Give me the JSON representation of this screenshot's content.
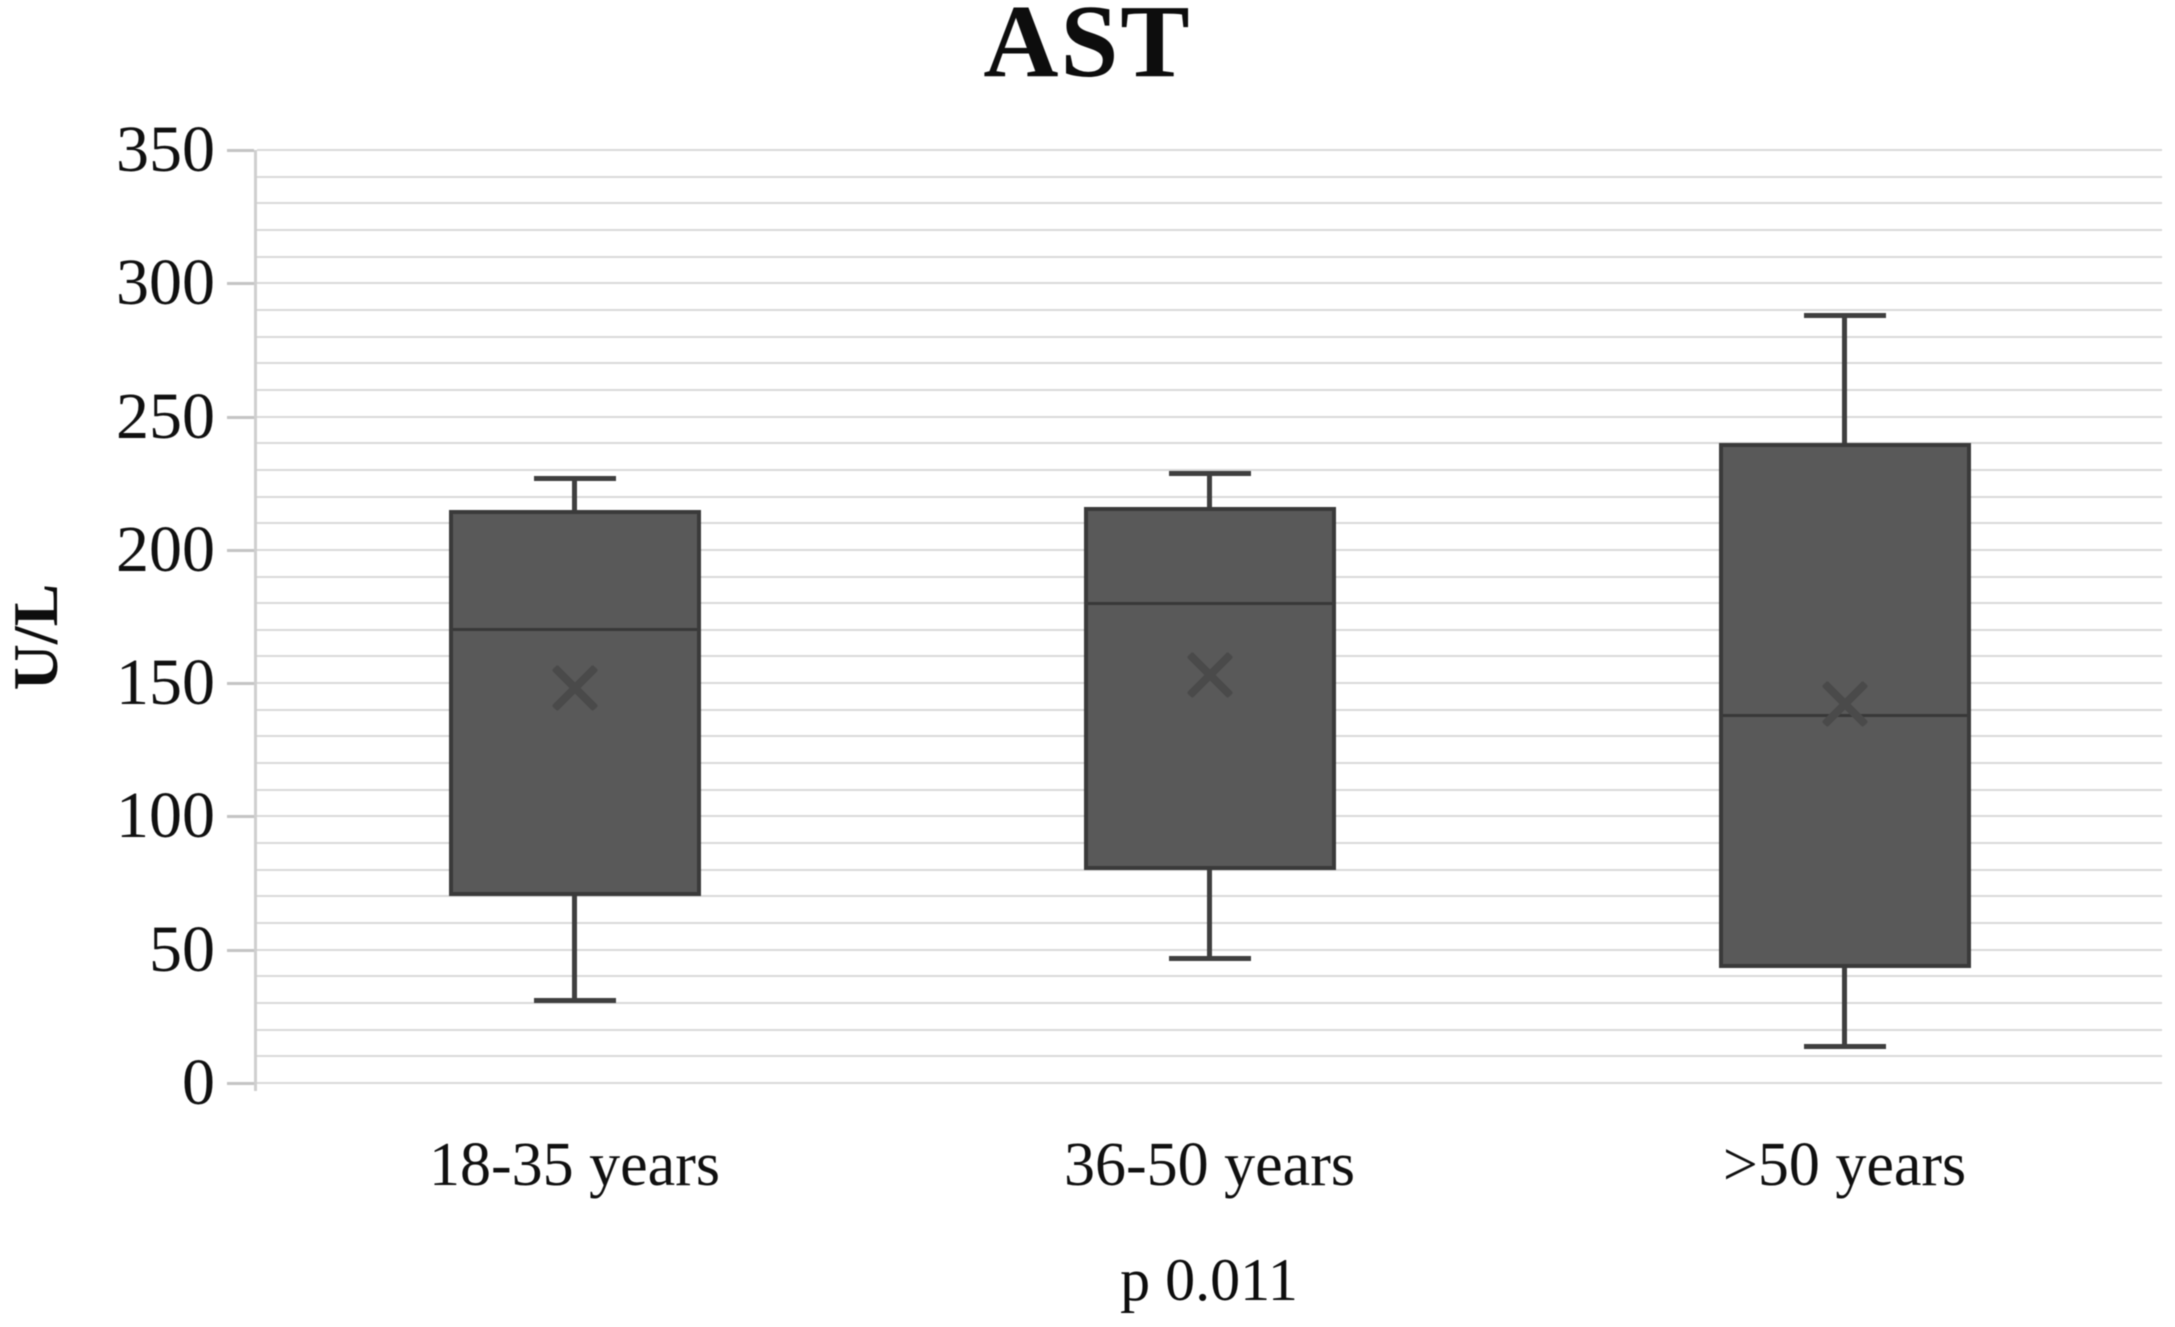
{
  "chart_data": {
    "type": "boxplot",
    "title": "AST",
    "ylabel": "U/L",
    "xlabel": "",
    "annotation": "p 0.011",
    "ylim": [
      0,
      350
    ],
    "ytick_step": 50,
    "gridline_step": 10,
    "grid": true,
    "legend": false,
    "categories": [
      "18-35 years",
      "36-50 years",
      ">50 years"
    ],
    "series": [
      {
        "name": "18-35 years",
        "whisker_low": 31,
        "q1": 70,
        "median": 170,
        "mean": 148,
        "q3": 215,
        "whisker_high": 227
      },
      {
        "name": "36-50 years",
        "whisker_low": 47,
        "q1": 80,
        "median": 180,
        "mean": 153,
        "q3": 216,
        "whisker_high": 229
      },
      {
        "name": ">50 years",
        "whisker_low": 14,
        "q1": 43,
        "median": 138,
        "mean": 142,
        "q3": 240,
        "whisker_high": 288
      }
    ]
  },
  "colors": {
    "box_fill": "#595959",
    "box_border": "#3a3a3a",
    "whisker": "#3f3f3f",
    "mean_marker": "#4a4a4a",
    "gridline": "#d9d9d9",
    "text": "#0d0d0d",
    "background": "#ffffff"
  }
}
